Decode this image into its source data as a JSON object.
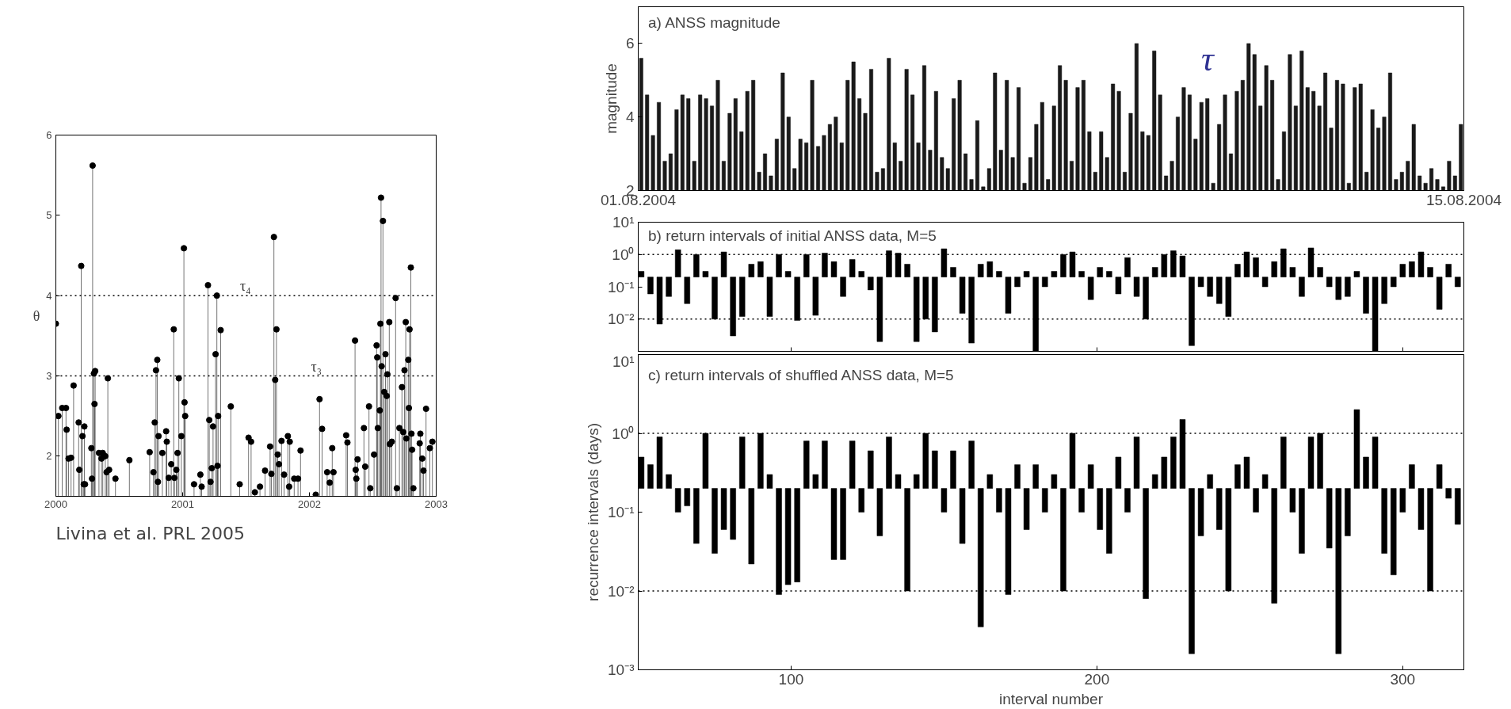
{
  "chart_data": [
    {
      "type": "lollipop",
      "ylabel": "θ",
      "marker": "circle",
      "color": "#000000",
      "xlim": [
        2000,
        2003
      ],
      "ylim": [
        1.5,
        6
      ],
      "xticks": [
        2000,
        2001,
        2002,
        2003
      ],
      "yticks": [
        2,
        3,
        4,
        5,
        6
      ],
      "x": [
        2000.0,
        2000.02,
        2000.05,
        2000.08,
        2000.085,
        2000.1,
        2000.12,
        2000.14,
        2000.18,
        2000.185,
        2000.2,
        2000.21,
        2000.22,
        2000.225,
        2000.23,
        2000.28,
        2000.285,
        2000.29,
        2000.3,
        2000.305,
        2000.31,
        2000.34,
        2000.36,
        2000.37,
        2000.39,
        2000.4,
        2000.41,
        2000.42,
        2000.47,
        2000.58,
        2000.74,
        2000.77,
        2000.78,
        2000.79,
        2000.8,
        2000.805,
        2000.81,
        2000.84,
        2000.87,
        2000.875,
        2000.89,
        2000.91,
        2000.93,
        2000.935,
        2000.95,
        2000.96,
        2000.97,
        2000.99,
        2001.01,
        2001.015,
        2001.02,
        2001.09,
        2001.14,
        2001.15,
        2001.2,
        2001.21,
        2001.22,
        2001.23,
        2001.24,
        2001.26,
        2001.27,
        2001.275,
        2001.28,
        2001.3,
        2001.38,
        2001.45,
        2001.52,
        2001.54,
        2001.57,
        2001.61,
        2001.65,
        2001.69,
        2001.7,
        2001.72,
        2001.73,
        2001.74,
        2001.75,
        2001.76,
        2001.78,
        2001.8,
        2001.83,
        2001.84,
        2001.845,
        2001.88,
        2001.91,
        2001.93,
        2002.05,
        2002.08,
        2002.1,
        2002.14,
        2002.16,
        2002.18,
        2002.19,
        2002.29,
        2002.3,
        2002.36,
        2002.365,
        2002.37,
        2002.38,
        2002.43,
        2002.44,
        2002.47,
        2002.48,
        2002.51,
        2002.53,
        2002.535,
        2002.54,
        2002.555,
        2002.56,
        2002.565,
        2002.57,
        2002.58,
        2002.59,
        2002.6,
        2002.61,
        2002.615,
        2002.63,
        2002.635,
        2002.65,
        2002.68,
        2002.69,
        2002.71,
        2002.73,
        2002.74,
        2002.75,
        2002.76,
        2002.765,
        2002.78,
        2002.785,
        2002.79,
        2002.8,
        2002.805,
        2002.81,
        2002.82,
        2002.87,
        2002.875,
        2002.89,
        2002.9,
        2002.92,
        2002.95,
        2002.97
      ],
      "values": [
        3.65,
        2.5,
        2.6,
        2.6,
        2.33,
        1.97,
        1.98,
        2.88,
        2.42,
        1.83,
        4.37,
        2.25,
        1.65,
        2.37,
        1.65,
        2.1,
        1.72,
        5.62,
        3.03,
        2.65,
        3.06,
        2.04,
        1.97,
        2.04,
        2.0,
        1.8,
        2.97,
        1.83,
        1.72,
        1.95,
        2.05,
        1.8,
        2.42,
        3.07,
        3.2,
        1.68,
        2.25,
        2.04,
        2.31,
        2.18,
        1.73,
        1.9,
        3.58,
        1.73,
        1.83,
        2.04,
        2.97,
        2.25,
        4.59,
        2.67,
        2.5,
        1.65,
        1.77,
        1.62,
        4.13,
        2.45,
        1.68,
        1.85,
        2.37,
        3.27,
        4.0,
        1.88,
        2.5,
        3.57,
        2.62,
        1.65,
        2.23,
        2.18,
        1.55,
        1.62,
        1.82,
        2.12,
        1.78,
        4.73,
        2.95,
        3.58,
        2.02,
        1.9,
        2.19,
        1.77,
        2.25,
        1.62,
        2.18,
        1.72,
        1.72,
        2.07,
        1.52,
        2.71,
        2.34,
        1.8,
        1.67,
        2.1,
        1.8,
        2.26,
        2.17,
        3.44,
        1.83,
        1.72,
        1.96,
        2.35,
        1.87,
        2.62,
        1.6,
        2.02,
        3.38,
        3.23,
        2.35,
        2.57,
        3.65,
        5.22,
        3.12,
        4.93,
        2.8,
        3.27,
        2.75,
        3.02,
        3.67,
        2.15,
        2.18,
        3.97,
        1.6,
        2.35,
        2.86,
        2.3,
        3.07,
        3.67,
        2.22,
        3.2,
        2.6,
        3.58,
        4.35,
        2.28,
        2.08,
        1.6,
        2.16,
        2.28,
        1.97,
        1.82,
        2.59,
        2.1,
        2.18
      ],
      "ref_lines": [
        {
          "axis": "y",
          "value": 3,
          "line_style": "dotted",
          "color": "#000000"
        },
        {
          "axis": "y",
          "value": 4,
          "line_style": "dotted",
          "color": "#000000"
        }
      ],
      "annotations": [
        "τ₄",
        "τ₃",
        "Livina et al. PRL 2005"
      ]
    },
    {
      "type": "bar",
      "title": "a) ANSS magnitude",
      "ylabel": "magnitude",
      "color": "#1a1a1a",
      "xlim": [
        "2004-08-01",
        "2004-08-15"
      ],
      "ylim": [
        2,
        7
      ],
      "xticks": [
        {
          "value": "2004-08-01",
          "label": "01.08.2004"
        },
        {
          "value": "2004-08-15",
          "label": "15.08.2004"
        }
      ],
      "yticks": [
        2,
        4,
        6
      ],
      "x": [
        "2004-08-01T01:12",
        "2004-08-01T03:36",
        "2004-08-01T06:00",
        "2004-08-01T08:24",
        "2004-08-01T10:48",
        "2004-08-01T13:12",
        "2004-08-01T15:36",
        "2004-08-01T18:00",
        "2004-08-01T20:24",
        "2004-08-01T22:48",
        "2004-08-02T01:12",
        "2004-08-02T03:36",
        "2004-08-02T06:00",
        "2004-08-02T08:24",
        "2004-08-02T10:48",
        "2004-08-02T13:12",
        "2004-08-02T15:36",
        "2004-08-02T18:00",
        "2004-08-02T20:24",
        "2004-08-02T22:48",
        "2004-08-03T01:12",
        "2004-08-03T03:36",
        "2004-08-03T06:00",
        "2004-08-03T08:24",
        "2004-08-03T10:48",
        "2004-08-03T13:12",
        "2004-08-03T15:36",
        "2004-08-03T18:00",
        "2004-08-03T20:24",
        "2004-08-03T22:48",
        "2004-08-04T01:12",
        "2004-08-04T03:36",
        "2004-08-04T06:00",
        "2004-08-04T08:24",
        "2004-08-04T10:48",
        "2004-08-04T13:12",
        "2004-08-04T15:36",
        "2004-08-04T18:00",
        "2004-08-04T20:24",
        "2004-08-04T22:48",
        "2004-08-05T01:12",
        "2004-08-05T03:36",
        "2004-08-05T06:00",
        "2004-08-05T08:24",
        "2004-08-05T10:48",
        "2004-08-05T13:12",
        "2004-08-05T15:36",
        "2004-08-05T18:00",
        "2004-08-05T20:24",
        "2004-08-05T22:48",
        "2004-08-06T01:12",
        "2004-08-06T03:36",
        "2004-08-06T06:00",
        "2004-08-06T08:24",
        "2004-08-06T10:48",
        "2004-08-06T13:12",
        "2004-08-06T15:36",
        "2004-08-06T18:00",
        "2004-08-06T20:24",
        "2004-08-06T22:48",
        "2004-08-07T01:12",
        "2004-08-07T03:36",
        "2004-08-07T06:00",
        "2004-08-07T08:24",
        "2004-08-07T10:48",
        "2004-08-07T13:12",
        "2004-08-07T15:36",
        "2004-08-07T18:00",
        "2004-08-07T20:24",
        "2004-08-07T22:48",
        "2004-08-08T01:12",
        "2004-08-08T03:36",
        "2004-08-08T06:00",
        "2004-08-08T08:24",
        "2004-08-08T10:48",
        "2004-08-08T13:12",
        "2004-08-08T15:36",
        "2004-08-08T18:00",
        "2004-08-08T20:24",
        "2004-08-08T22:48",
        "2004-08-09T01:12",
        "2004-08-09T03:36",
        "2004-08-09T06:00",
        "2004-08-09T08:24",
        "2004-08-09T10:48",
        "2004-08-09T13:12",
        "2004-08-09T15:36",
        "2004-08-09T18:00",
        "2004-08-09T20:24",
        "2004-08-09T22:48",
        "2004-08-10T01:12",
        "2004-08-10T03:36",
        "2004-08-10T06:00",
        "2004-08-10T08:24",
        "2004-08-10T10:48",
        "2004-08-10T13:12",
        "2004-08-10T15:36",
        "2004-08-10T18:00",
        "2004-08-10T20:24",
        "2004-08-10T22:48",
        "2004-08-11T01:12",
        "2004-08-11T03:36",
        "2004-08-11T06:00",
        "2004-08-11T08:24",
        "2004-08-11T10:48",
        "2004-08-11T13:12",
        "2004-08-11T15:36",
        "2004-08-11T18:00",
        "2004-08-11T20:24",
        "2004-08-11T22:48",
        "2004-08-12T01:12",
        "2004-08-12T03:36",
        "2004-08-12T06:00",
        "2004-08-12T08:24",
        "2004-08-12T10:48",
        "2004-08-12T13:12",
        "2004-08-12T15:36",
        "2004-08-12T18:00",
        "2004-08-12T20:24",
        "2004-08-12T22:48",
        "2004-08-13T01:12",
        "2004-08-13T03:36",
        "2004-08-13T06:00",
        "2004-08-13T08:24",
        "2004-08-13T10:48",
        "2004-08-13T13:12",
        "2004-08-13T15:36",
        "2004-08-13T18:00",
        "2004-08-13T20:24",
        "2004-08-13T22:48",
        "2004-08-14T01:12",
        "2004-08-14T03:36",
        "2004-08-14T06:00",
        "2004-08-14T08:24",
        "2004-08-14T10:48",
        "2004-08-14T13:12",
        "2004-08-14T15:36",
        "2004-08-14T18:00",
        "2004-08-14T20:24",
        "2004-08-14T22:48"
      ],
      "values": [
        5.6,
        4.6,
        3.5,
        4.4,
        2.8,
        3.0,
        4.2,
        4.6,
        4.5,
        2.8,
        4.6,
        4.5,
        4.3,
        5.0,
        2.8,
        4.1,
        4.5,
        3.6,
        4.7,
        5.0,
        2.5,
        3.0,
        2.4,
        3.4,
        5.2,
        4.0,
        2.6,
        3.4,
        3.3,
        5.0,
        3.2,
        3.5,
        3.8,
        4.0,
        3.3,
        5.0,
        5.5,
        4.5,
        4.1,
        5.3,
        2.5,
        2.6,
        5.6,
        3.3,
        2.8,
        5.3,
        4.6,
        3.3,
        5.4,
        3.1,
        4.7,
        2.9,
        2.6,
        4.5,
        5.0,
        3.0,
        2.3,
        3.9,
        2.1,
        2.6,
        5.2,
        3.1,
        5.0,
        2.9,
        4.8,
        2.2,
        2.9,
        3.8,
        4.4,
        2.3,
        4.3,
        5.4,
        5.0,
        2.8,
        4.8,
        5.0,
        3.6,
        2.5,
        3.6,
        2.9,
        4.9,
        4.7,
        2.5,
        4.1,
        6.0,
        3.6,
        3.5,
        5.8,
        4.6,
        2.4,
        2.8,
        4.0,
        4.8,
        4.6,
        3.4,
        4.4,
        4.5,
        2.2,
        3.8,
        4.6,
        3.0,
        4.7,
        5.0,
        6.0,
        5.7,
        4.3,
        5.4,
        5.0,
        2.3,
        3.6,
        5.7,
        4.3,
        5.8,
        4.8,
        4.7,
        4.3,
        5.2,
        3.7,
        5.0,
        4.9,
        2.2,
        4.8,
        4.9,
        2.5,
        4.2,
        3.7,
        4.0,
        5.2,
        2.3,
        2.5,
        2.8,
        3.8,
        2.4,
        2.2,
        2.6,
        2.3,
        2.1,
        2.8,
        2.4,
        3.8
      ],
      "annotations": [
        "τ"
      ]
    },
    {
      "type": "bar",
      "title": "b) return intervals of initial ANSS data, M=5",
      "color": "#000000",
      "log": true,
      "tick_labels": "y",
      "xlim": [
        50,
        320
      ],
      "ylim": [
        0.001,
        10
      ],
      "xticks": [
        100,
        200,
        300
      ],
      "yticks": [
        {
          "value": 0.001,
          "label": null
        },
        {
          "value": 0.01,
          "label": "10⁻²"
        },
        {
          "value": 0.1,
          "label": "10⁻¹"
        },
        {
          "value": 1,
          "label": "10⁰"
        },
        {
          "value": 10,
          "label": "10¹"
        }
      ],
      "x": [
        51,
        54,
        57,
        60,
        63,
        66,
        69,
        72,
        75,
        78,
        81,
        84,
        87,
        90,
        93,
        96,
        99,
        102,
        105,
        108,
        111,
        114,
        117,
        120,
        123,
        126,
        129,
        132,
        135,
        138,
        141,
        144,
        147,
        150,
        153,
        156,
        159,
        162,
        165,
        168,
        171,
        174,
        177,
        180,
        183,
        186,
        189,
        192,
        195,
        198,
        201,
        204,
        207,
        210,
        213,
        216,
        219,
        222,
        225,
        228,
        231,
        234,
        237,
        240,
        243,
        246,
        249,
        252,
        255,
        258,
        261,
        264,
        267,
        270,
        273,
        276,
        279,
        282,
        285,
        288,
        291,
        294,
        297,
        300,
        303,
        306,
        309,
        312,
        315,
        318
      ],
      "base": [
        0.2,
        0.2,
        0.2,
        0.2,
        0.2,
        0.2,
        0.2,
        0.2,
        0.2,
        0.2,
        0.2,
        0.2,
        0.2,
        0.2,
        0.2,
        0.2,
        0.2,
        0.2,
        0.2,
        0.2,
        0.2,
        0.2,
        0.2,
        0.2,
        0.2,
        0.2,
        0.2,
        0.2,
        0.2,
        0.2,
        0.2,
        0.2,
        0.2,
        0.2,
        0.2,
        0.2,
        0.2,
        0.2,
        0.2,
        0.2,
        0.2,
        0.2,
        0.2,
        0.2,
        0.2,
        0.2,
        0.2,
        0.2,
        0.2,
        0.2,
        0.2,
        0.2,
        0.2,
        0.2,
        0.2,
        0.2,
        0.2,
        0.2,
        0.2,
        0.2,
        0.2,
        0.2,
        0.2,
        0.2,
        0.2,
        0.2,
        0.2,
        0.2,
        0.2,
        0.2,
        0.2,
        0.2,
        0.2,
        0.2,
        0.2,
        0.2,
        0.2,
        0.2,
        0.2,
        0.2,
        0.2,
        0.2,
        0.2,
        0.2,
        0.2,
        0.2,
        0.2,
        0.2,
        0.2,
        0.2
      ],
      "values": [
        0.1,
        -0.14,
        -0.193,
        -0.15,
        1.2,
        -0.17,
        0.8,
        0.1,
        -0.19,
        1.0,
        -0.197,
        -0.188,
        0.3,
        0.4,
        -0.188,
        0.8,
        0.1,
        -0.191,
        0.8,
        -0.187,
        0.9,
        0.4,
        -0.15,
        0.5,
        0.1,
        -0.12,
        -0.198,
        1.1,
        0.9,
        0.3,
        -0.198,
        -0.19,
        -0.196,
        1.3,
        0.2,
        -0.185,
        -0.1982,
        0.3,
        0.4,
        0.1,
        -0.185,
        -0.1,
        0.1,
        -0.199,
        -0.1,
        0.1,
        0.8,
        1.0,
        0.1,
        -0.16,
        0.2,
        0.1,
        -0.14,
        0.6,
        -0.15,
        -0.19,
        0.2,
        0.8,
        1.1,
        0.7,
        -0.1985,
        -0.1,
        -0.15,
        -0.17,
        -0.188,
        0.3,
        1.0,
        0.6,
        -0.1,
        0.4,
        1.3,
        0.2,
        -0.15,
        1.4,
        0.2,
        -0.1,
        -0.16,
        -0.15,
        0.1,
        -0.185,
        -0.199,
        -0.17,
        -0.1,
        0.3,
        0.4,
        1.0,
        0.2,
        -0.18,
        0.3,
        -0.1
      ],
      "ref_lines": [
        {
          "axis": "y",
          "value": 1,
          "line_style": "dotted",
          "color": "#000000"
        },
        {
          "axis": "y",
          "value": 0.01,
          "line_style": "dotted",
          "color": "#000000"
        }
      ]
    },
    {
      "type": "bar",
      "title": "c) return intervals of shuffled ANSS data, M=5",
      "xlabel": "interval number",
      "ylabel": "recurrence intervals (days)",
      "color": "#000000",
      "log": true,
      "xlim": [
        50,
        320
      ],
      "ylim": [
        0.001,
        10
      ],
      "xticks": [
        100,
        200,
        300
      ],
      "yticks": [
        {
          "value": 0.001,
          "label": "10⁻³"
        },
        {
          "value": 0.01,
          "label": "10⁻²"
        },
        {
          "value": 0.1,
          "label": "10⁻¹"
        },
        {
          "value": 1,
          "label": "10⁰"
        },
        {
          "value": 10,
          "label": "10¹"
        }
      ],
      "x": [
        51,
        54,
        57,
        60,
        63,
        66,
        69,
        72,
        75,
        78,
        81,
        84,
        87,
        90,
        93,
        96,
        99,
        102,
        105,
        108,
        111,
        114,
        117,
        120,
        123,
        126,
        129,
        132,
        135,
        138,
        141,
        144,
        147,
        150,
        153,
        156,
        159,
        162,
        165,
        168,
        171,
        174,
        177,
        180,
        183,
        186,
        189,
        192,
        195,
        198,
        201,
        204,
        207,
        210,
        213,
        216,
        219,
        222,
        225,
        228,
        231,
        234,
        237,
        240,
        243,
        246,
        249,
        252,
        255,
        258,
        261,
        264,
        267,
        270,
        273,
        276,
        279,
        282,
        285,
        288,
        291,
        294,
        297,
        300,
        303,
        306,
        309,
        312,
        315,
        318
      ],
      "base": [
        0.2,
        0.2,
        0.2,
        0.2,
        0.2,
        0.2,
        0.2,
        0.2,
        0.2,
        0.2,
        0.2,
        0.2,
        0.2,
        0.2,
        0.2,
        0.2,
        0.2,
        0.2,
        0.2,
        0.2,
        0.2,
        0.2,
        0.2,
        0.2,
        0.2,
        0.2,
        0.2,
        0.2,
        0.2,
        0.2,
        0.2,
        0.2,
        0.2,
        0.2,
        0.2,
        0.2,
        0.2,
        0.2,
        0.2,
        0.2,
        0.2,
        0.2,
        0.2,
        0.2,
        0.2,
        0.2,
        0.2,
        0.2,
        0.2,
        0.2,
        0.2,
        0.2,
        0.2,
        0.2,
        0.2,
        0.2,
        0.2,
        0.2,
        0.2,
        0.2,
        0.2,
        0.2,
        0.2,
        0.2,
        0.2,
        0.2,
        0.2,
        0.2,
        0.2,
        0.2,
        0.2,
        0.2,
        0.2,
        0.2,
        0.2,
        0.2,
        0.2,
        0.2,
        0.2,
        0.2,
        0.2,
        0.2,
        0.2,
        0.2,
        0.2,
        0.2,
        0.2,
        0.2,
        0.2,
        0.2
      ],
      "values": [
        0.3,
        0.2,
        0.7,
        0.1,
        -0.1,
        -0.08,
        -0.16,
        0.8,
        -0.17,
        -0.14,
        -0.155,
        0.7,
        -0.178,
        0.8,
        0.1,
        -0.191,
        -0.188,
        -0.187,
        0.6,
        0.1,
        0.6,
        -0.175,
        -0.175,
        0.6,
        -0.1,
        0.4,
        -0.15,
        0.7,
        0.1,
        -0.19,
        0.1,
        0.8,
        0.4,
        -0.1,
        0.4,
        -0.16,
        0.6,
        -0.1965,
        0.1,
        -0.1,
        -0.191,
        0.2,
        -0.14,
        0.2,
        -0.1,
        0.1,
        -0.19,
        0.8,
        -0.1,
        0.2,
        -0.14,
        -0.17,
        0.3,
        -0.1,
        0.7,
        -0.192,
        0.1,
        0.3,
        0.7,
        1.3,
        -0.1984,
        -0.15,
        0.1,
        -0.14,
        -0.19,
        0.2,
        0.3,
        -0.1,
        0.1,
        -0.193,
        0.7,
        -0.1,
        -0.17,
        0.7,
        0.8,
        -0.165,
        -0.1984,
        -0.15,
        1.8,
        0.3,
        0.7,
        -0.17,
        -0.184,
        -0.1,
        0.2,
        -0.14,
        -0.19,
        0.2,
        -0.05,
        -0.13
      ],
      "ref_lines": [
        {
          "axis": "y",
          "value": 1,
          "line_style": "dotted",
          "color": "#000000"
        },
        {
          "axis": "y",
          "value": 0.01,
          "line_style": "dotted",
          "color": "#000000"
        }
      ]
    }
  ]
}
